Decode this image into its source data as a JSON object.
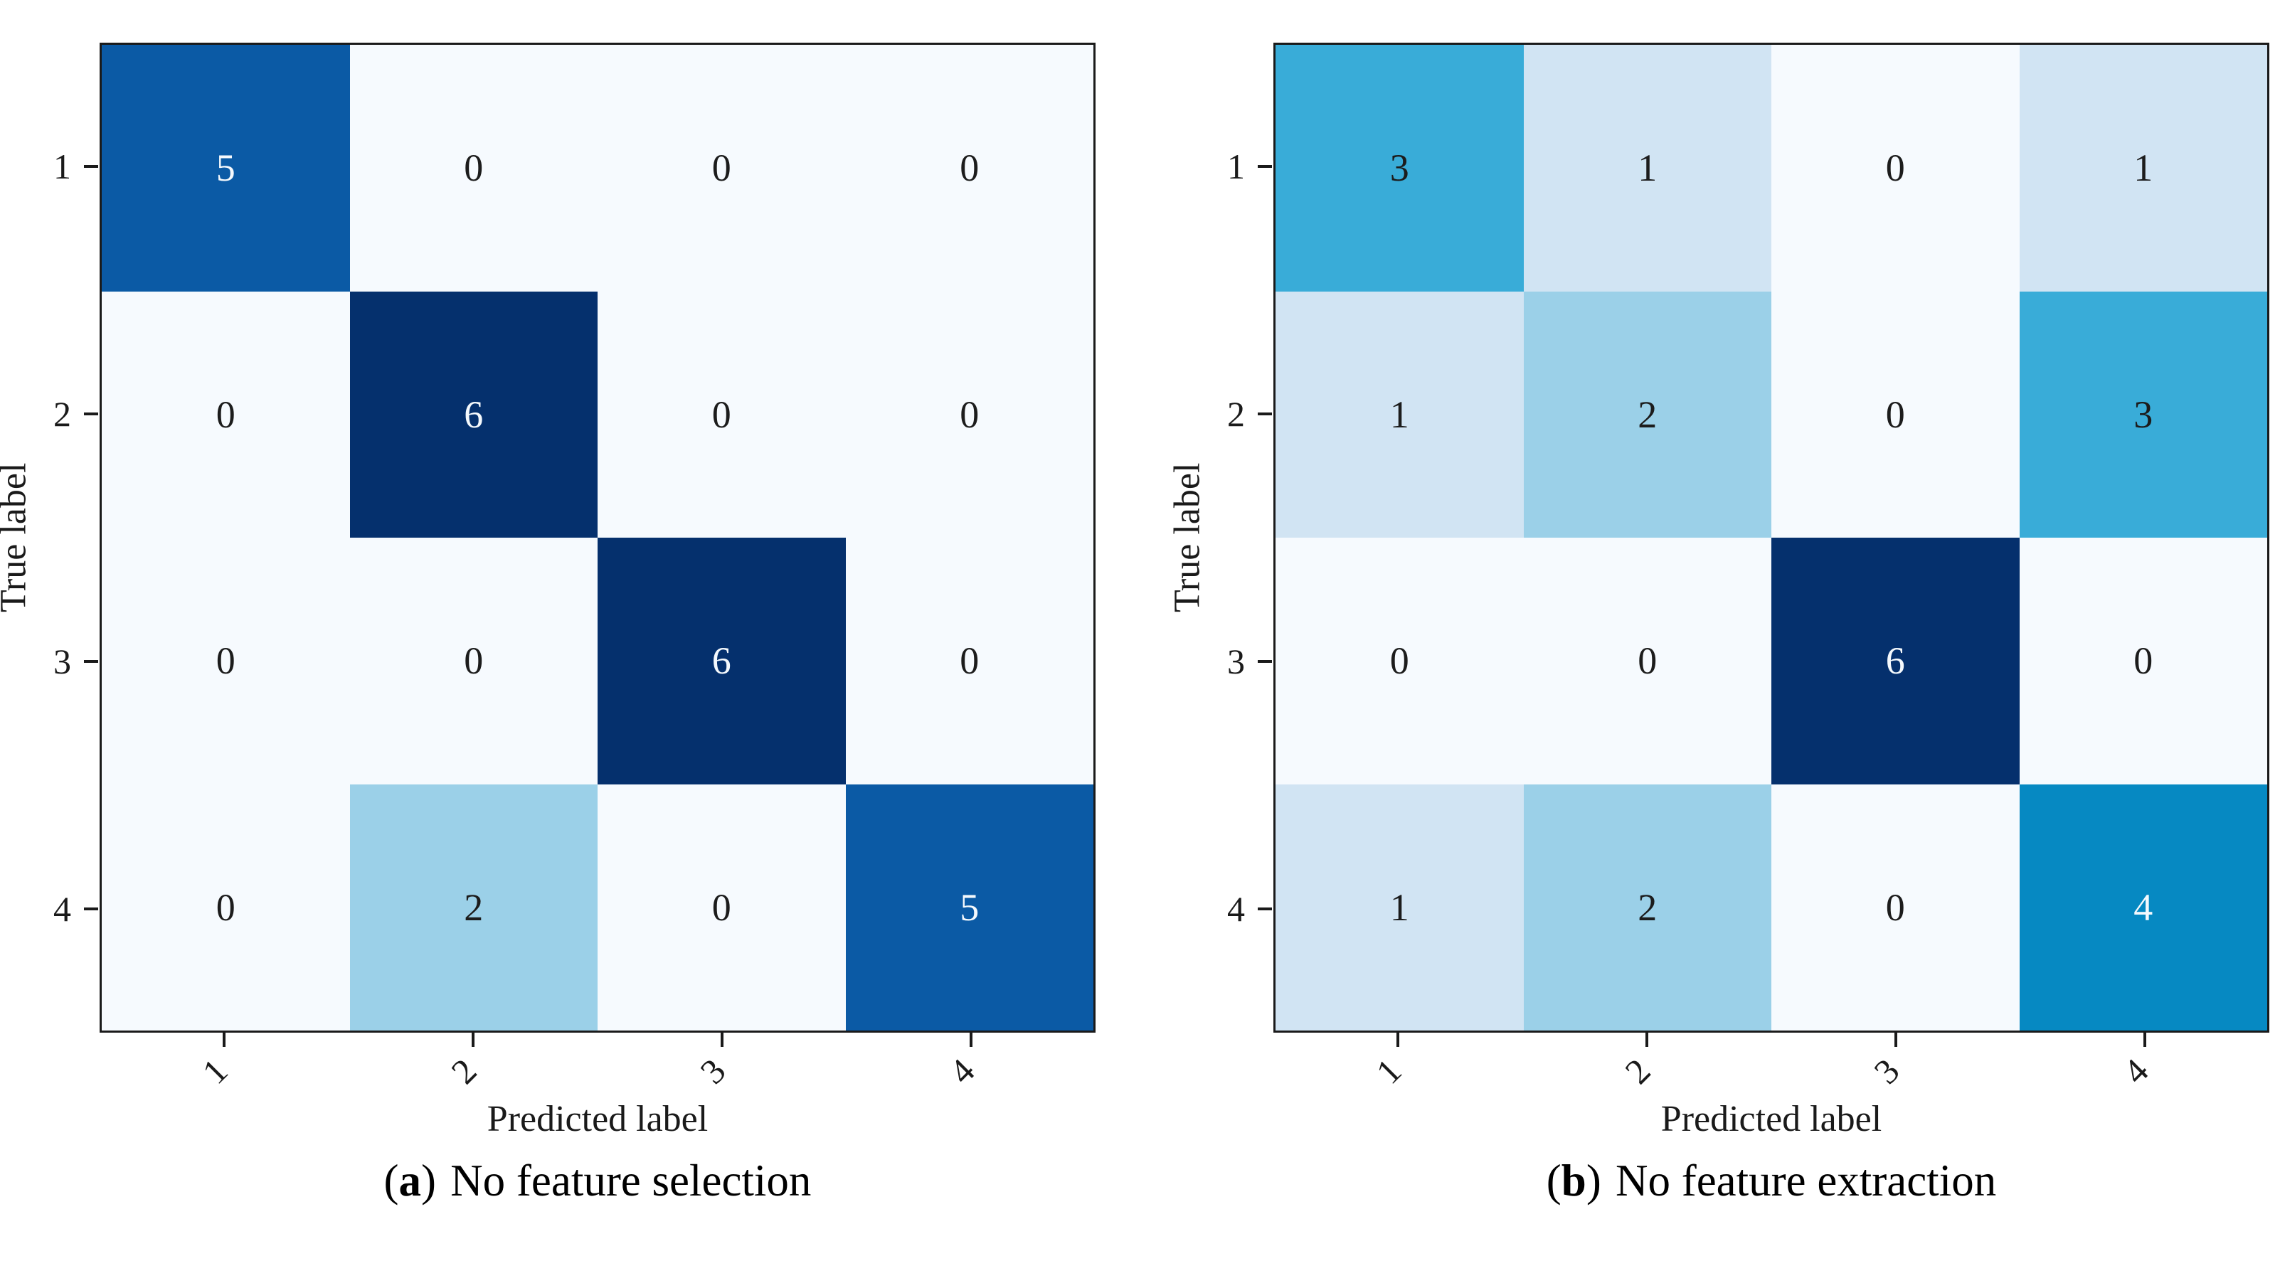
{
  "figure": {
    "background": "#ffffff",
    "axis_color": "#1a1a1a"
  },
  "colormap": {
    "0": "#f6fafe",
    "1": "#d1e4f3",
    "2": "#9bd0e8",
    "3": "#39acd8",
    "4": "#0689c2",
    "5": "#0b5aa5",
    "6": "#05306d"
  },
  "value_text": {
    "dark": "#1c1c1c",
    "light": "#f5f9fd",
    "light_threshold": 4
  },
  "chart_data": [
    {
      "type": "heatmap",
      "caption_label": "a",
      "caption_text": "No feature selection",
      "xlabel": "Predicted label",
      "ylabel": "True label",
      "x_tick_labels": [
        "1",
        "2",
        "3",
        "4"
      ],
      "y_tick_labels": [
        "1",
        "2",
        "3",
        "4"
      ],
      "vmin": 0,
      "vmax": 6,
      "rows": [
        [
          5,
          0,
          0,
          0
        ],
        [
          0,
          6,
          0,
          0
        ],
        [
          0,
          0,
          6,
          0
        ],
        [
          0,
          2,
          0,
          5
        ]
      ]
    },
    {
      "type": "heatmap",
      "caption_label": "b",
      "caption_text": "No feature extraction",
      "xlabel": "Predicted label",
      "ylabel": "True label",
      "x_tick_labels": [
        "1",
        "2",
        "3",
        "4"
      ],
      "y_tick_labels": [
        "1",
        "2",
        "3",
        "4"
      ],
      "vmin": 0,
      "vmax": 6,
      "rows": [
        [
          3,
          1,
          0,
          1
        ],
        [
          1,
          2,
          0,
          3
        ],
        [
          0,
          0,
          6,
          0
        ],
        [
          1,
          2,
          0,
          4
        ]
      ]
    }
  ]
}
